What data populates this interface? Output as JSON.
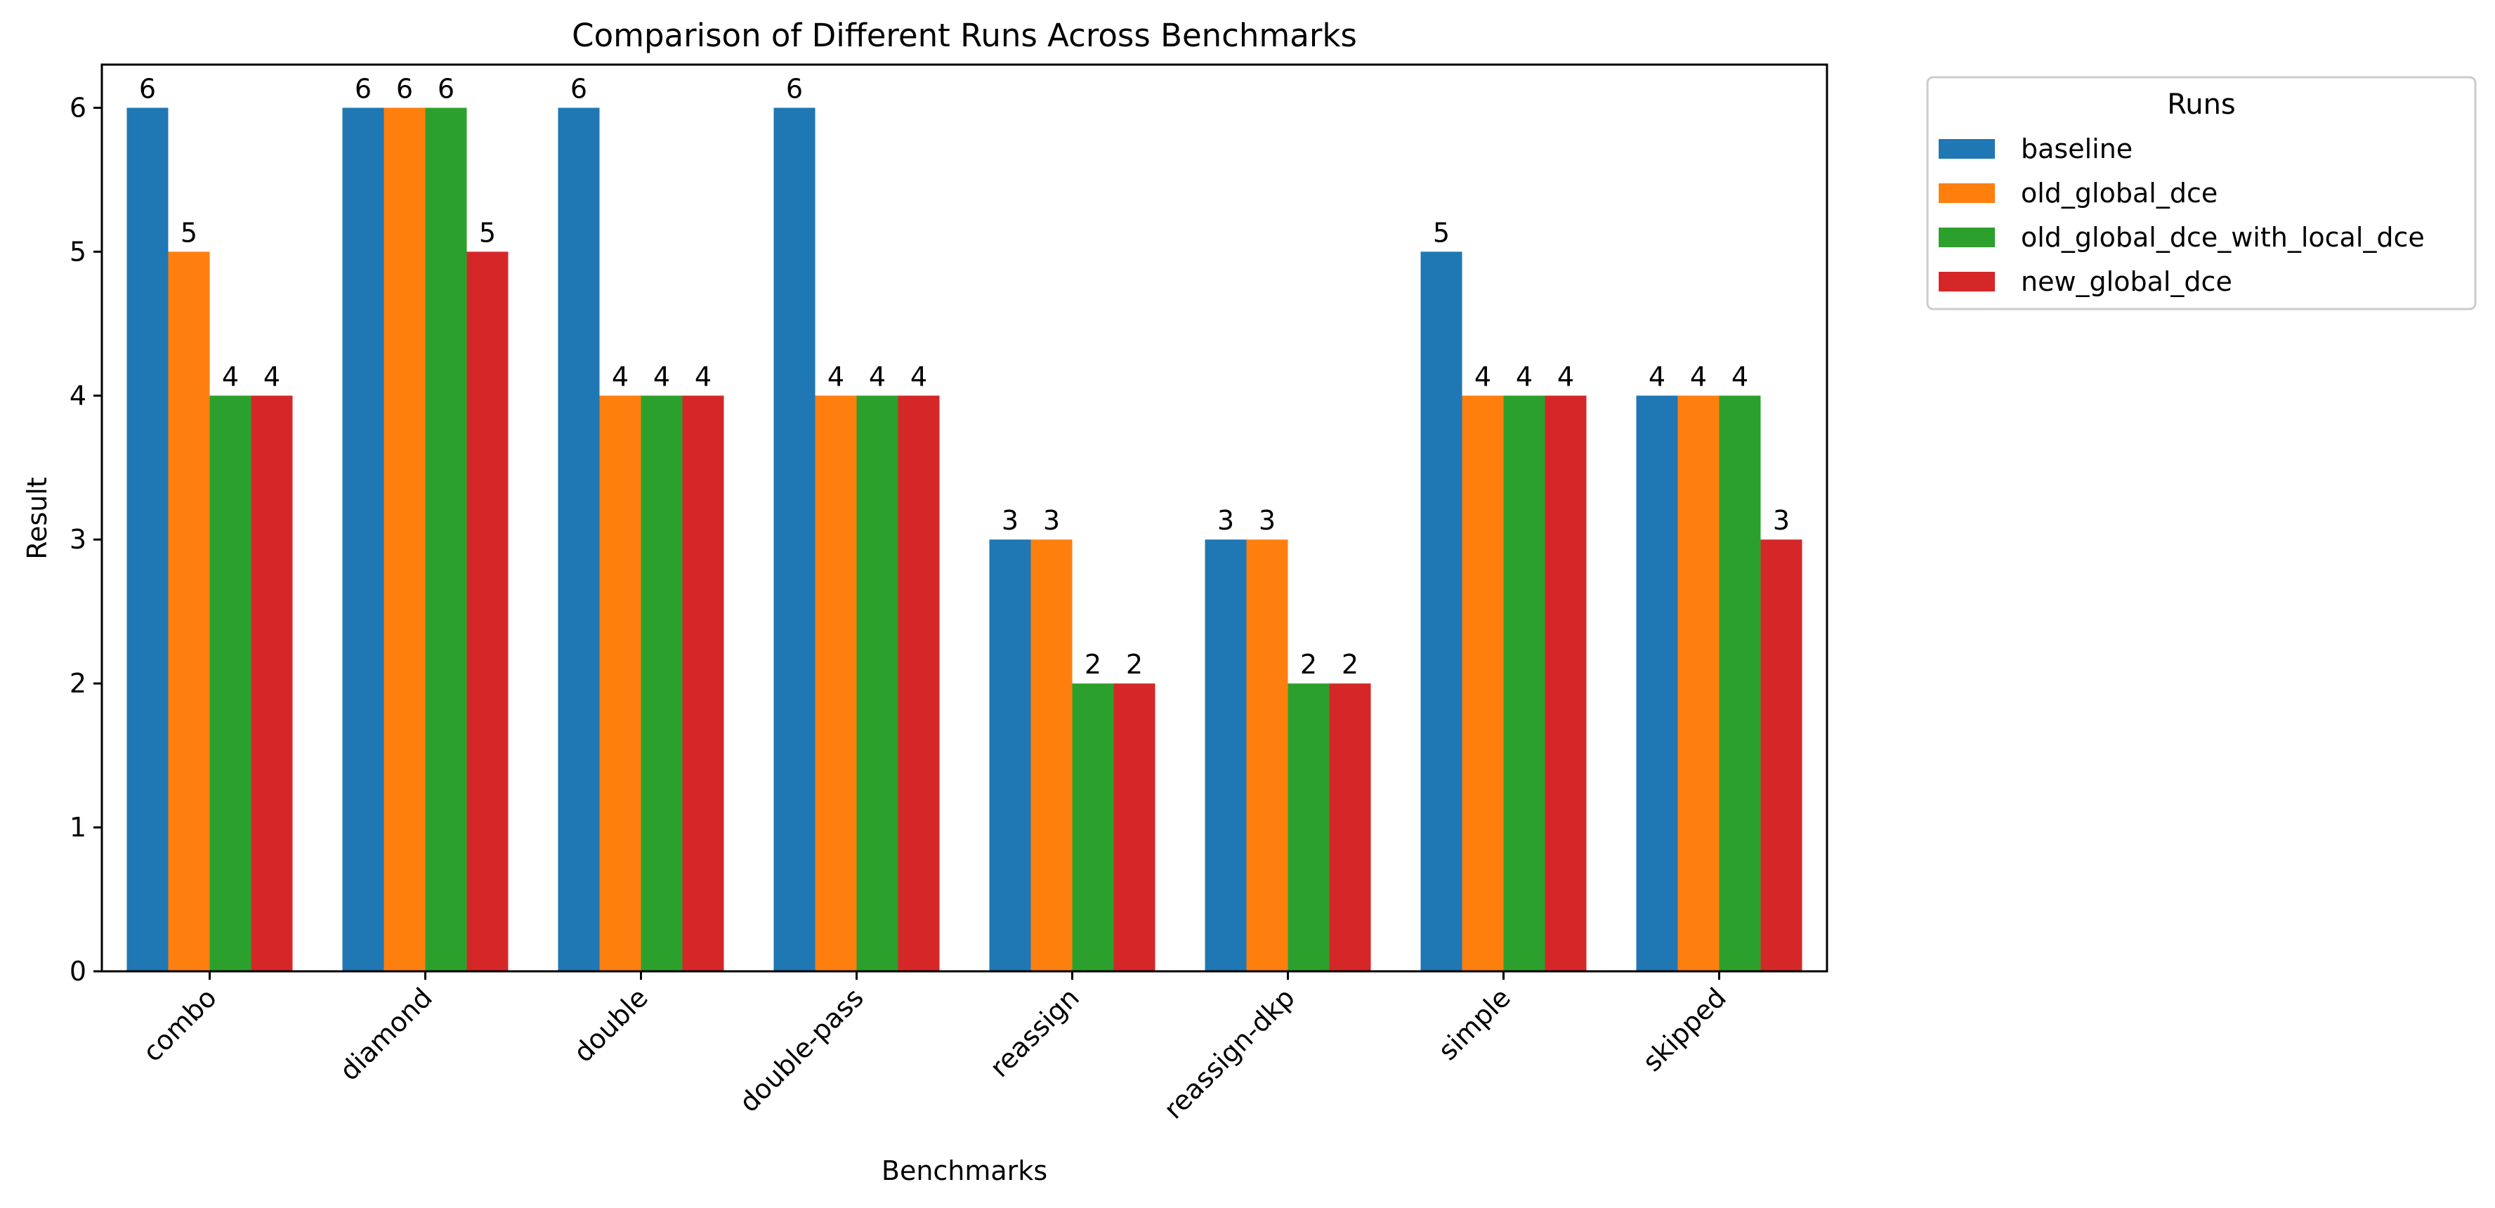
{
  "chart_data": {
    "type": "bar",
    "title": "Comparison of Different Runs Across Benchmarks",
    "xlabel": "Benchmarks",
    "ylabel": "Result",
    "ylim": [
      0,
      6.3
    ],
    "yticks": [
      0,
      1,
      2,
      3,
      4,
      5,
      6
    ],
    "grid": false,
    "legend": {
      "title": "Runs",
      "placement": "outside-top-right"
    },
    "categories": [
      "combo",
      "diamond",
      "double",
      "double-pass",
      "reassign",
      "reassign-dkp",
      "simple",
      "skipped"
    ],
    "series": [
      {
        "name": "baseline",
        "color": "#1f77b4",
        "values": [
          6,
          6,
          6,
          6,
          3,
          3,
          5,
          4
        ]
      },
      {
        "name": "old_global_dce",
        "color": "#ff7f0e",
        "values": [
          5,
          6,
          4,
          4,
          3,
          3,
          4,
          4
        ]
      },
      {
        "name": "old_global_dce_with_local_dce",
        "color": "#2ca02c",
        "values": [
          4,
          6,
          4,
          4,
          2,
          2,
          4,
          4
        ]
      },
      {
        "name": "new_global_dce",
        "color": "#d62728",
        "values": [
          4,
          5,
          4,
          4,
          2,
          2,
          4,
          3
        ]
      }
    ]
  }
}
